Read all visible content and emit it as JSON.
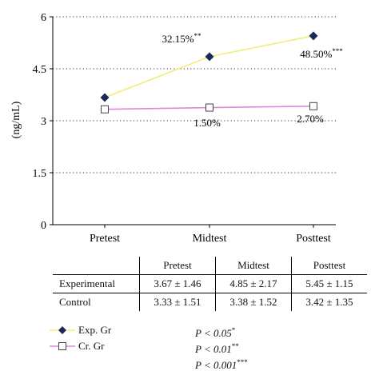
{
  "chart_data": {
    "type": "line",
    "ylabel": "(ng/mL)",
    "xlabel": "",
    "ylim": [
      0,
      6
    ],
    "yticks": [
      0,
      1.5,
      3,
      4.5,
      6
    ],
    "ytick_labels": [
      "0",
      "1.5",
      "3",
      "4.5",
      "6"
    ],
    "categories": [
      "Pretest",
      "Midtest",
      "Posttest"
    ],
    "grid": "horizontal-dotted",
    "series": [
      {
        "name": "Exp. Gr",
        "values": [
          3.67,
          4.85,
          5.45
        ],
        "color": "#f2ef6e",
        "marker": "filled-diamond",
        "marker_color": "#1a2a55",
        "labels": [
          "",
          "32.15%",
          "48.50%"
        ],
        "label_stars": [
          "",
          "**",
          "***"
        ]
      },
      {
        "name": "Cr. Gr",
        "values": [
          3.33,
          3.38,
          3.42
        ],
        "color": "#d98ad9",
        "marker": "open-square",
        "marker_color": "#444444",
        "labels": [
          "",
          "1.50%",
          "2.70%"
        ],
        "label_stars": [
          "",
          "",
          ""
        ]
      }
    ]
  },
  "table": {
    "headers": [
      "",
      "Pretest",
      "Midtest",
      "Posttest"
    ],
    "rows": [
      {
        "label": "Experimental",
        "cells": [
          "3.67 ± 1.46",
          "4.85 ± 2.17",
          "5.45 ± 1.15"
        ]
      },
      {
        "label": "Control",
        "cells": [
          "3.33 ± 1.51",
          "3.38 ± 1.52",
          "3.42 ± 1.35"
        ]
      }
    ]
  },
  "legend": {
    "items": [
      {
        "label": "Exp. Gr"
      },
      {
        "label": "Cr. Gr"
      }
    ]
  },
  "pvalues": [
    {
      "text": "P < 0.05",
      "stars": "*"
    },
    {
      "text": "P < 0.01",
      "stars": "**"
    },
    {
      "text": "P < 0.001",
      "stars": "***"
    }
  ]
}
